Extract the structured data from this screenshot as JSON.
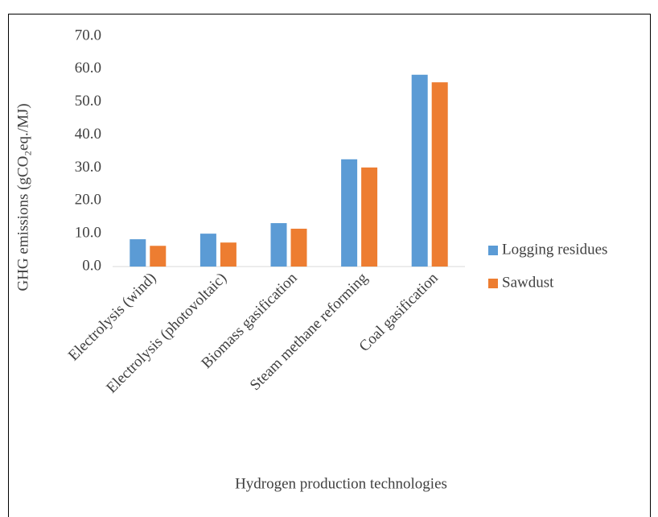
{
  "chart_data": {
    "type": "bar",
    "y_label": "GHG emissions (gCO₂eq./MJ)",
    "x_label": "Hydrogen production technologies",
    "categories": [
      "Electrolysis (wind)",
      "Electrolysis (photovoltaic)",
      "Biomass gasification",
      "Steam methane reforming",
      "Coal gasification"
    ],
    "series": [
      {
        "name": "Logging residues",
        "color": "#5b9bd5",
        "values": [
          8.3,
          10.0,
          13.2,
          32.6,
          58.3
        ]
      },
      {
        "name": "Sawdust",
        "color": "#ed7d31",
        "values": [
          6.3,
          7.3,
          11.5,
          30.1,
          56.0
        ]
      }
    ],
    "ylim": [
      0,
      70
    ],
    "yticks": [
      {
        "value": 0,
        "label": "0.0"
      },
      {
        "value": 10,
        "label": "10.0"
      },
      {
        "value": 20,
        "label": "20.0"
      },
      {
        "value": 30,
        "label": "30.0"
      },
      {
        "value": 40,
        "label": "40.0"
      },
      {
        "value": 50,
        "label": "50.0"
      },
      {
        "value": 60,
        "label": "60.0"
      },
      {
        "value": 70,
        "label": "70.0"
      }
    ],
    "legend": "right",
    "grid": false
  }
}
